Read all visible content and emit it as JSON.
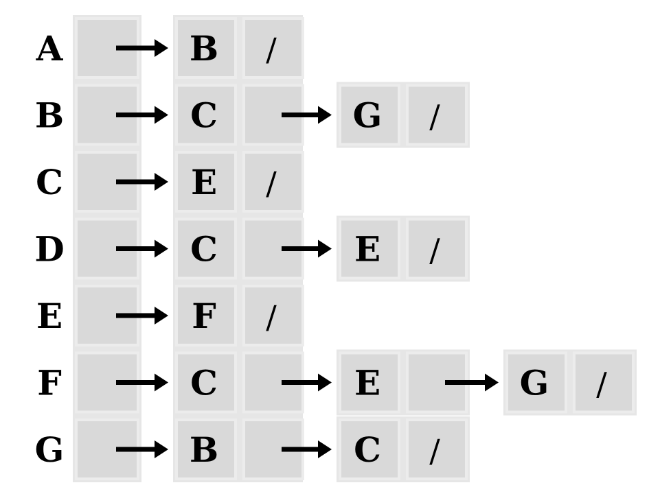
{
  "adjacency_list": {
    "null_marker": "/",
    "vertices": [
      {
        "label": "A",
        "neighbors": [
          "B"
        ]
      },
      {
        "label": "B",
        "neighbors": [
          "C",
          "G"
        ]
      },
      {
        "label": "C",
        "neighbors": [
          "E"
        ]
      },
      {
        "label": "D",
        "neighbors": [
          "C",
          "E"
        ]
      },
      {
        "label": "E",
        "neighbors": [
          "F"
        ]
      },
      {
        "label": "F",
        "neighbors": [
          "C",
          "E",
          "G"
        ]
      },
      {
        "label": "G",
        "neighbors": [
          "B",
          "C"
        ]
      }
    ]
  }
}
